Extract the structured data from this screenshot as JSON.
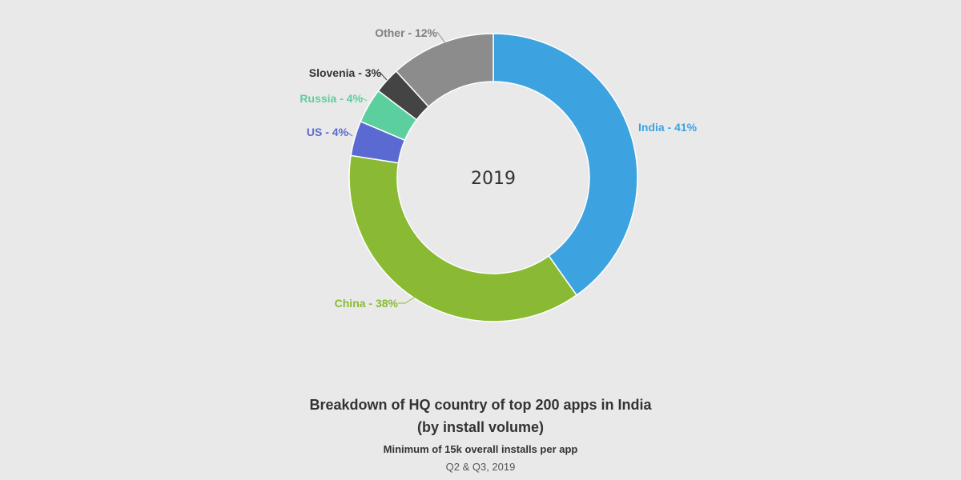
{
  "chart_data": {
    "type": "pie",
    "donut": true,
    "center_label": "2019",
    "title_line1": "Breakdown of HQ country of top 200 apps in India",
    "title_line2": "(by install volume)",
    "subtitle": "Minimum of 15k overall installs per app",
    "period": "Q2 & Q3, 2019",
    "slices": [
      {
        "label": "India - 41%",
        "value": 41,
        "color": "#3da2e0"
      },
      {
        "label": "China - 38%",
        "value": 38,
        "color": "#8aba33"
      },
      {
        "label": "US - 4%",
        "value": 4,
        "color": "#5a6ad2"
      },
      {
        "label": "Russia - 4%",
        "value": 4,
        "color": "#5ccf9e"
      },
      {
        "label": "Slovenia - 3%",
        "value": 3,
        "color": "#444444"
      },
      {
        "label": "Other - 12%",
        "value": 12,
        "color": "#8c8c8c"
      }
    ]
  }
}
